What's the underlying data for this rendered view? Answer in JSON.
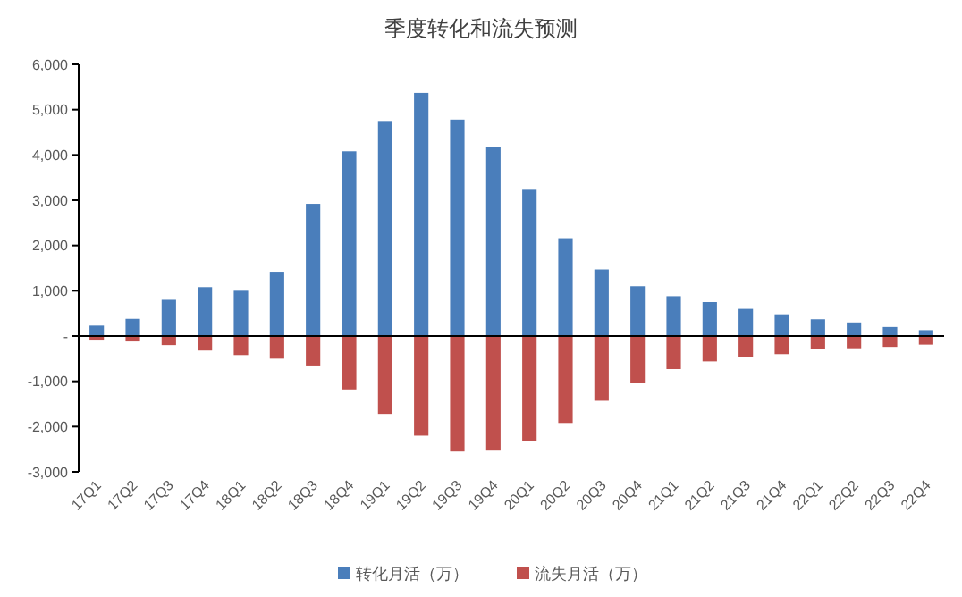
{
  "chart_data": {
    "type": "bar",
    "title": "季度转化和流失预测",
    "categories": [
      "17Q1",
      "17Q2",
      "17Q3",
      "17Q4",
      "18Q1",
      "18Q2",
      "18Q3",
      "18Q4",
      "19Q1",
      "19Q2",
      "19Q3",
      "19Q4",
      "20Q1",
      "20Q2",
      "20Q3",
      "20Q4",
      "21Q1",
      "21Q2",
      "21Q3",
      "21Q4",
      "22Q1",
      "22Q2",
      "22Q3",
      "22Q4"
    ],
    "series": [
      {
        "name": "转化月活（万）",
        "color": "#4a7ebb",
        "values": [
          230,
          380,
          800,
          1080,
          1000,
          1420,
          2920,
          4080,
          4750,
          5370,
          4780,
          4170,
          3230,
          2160,
          1470,
          1100,
          880,
          750,
          600,
          480,
          370,
          300,
          200,
          130
        ]
      },
      {
        "name": "流失月活（万）",
        "color": "#c0504d",
        "values": [
          -80,
          -120,
          -200,
          -320,
          -420,
          -500,
          -650,
          -1180,
          -1720,
          -2200,
          -2550,
          -2530,
          -2320,
          -1920,
          -1430,
          -1030,
          -730,
          -560,
          -470,
          -400,
          -290,
          -270,
          -240,
          -190
        ]
      }
    ],
    "ylim": [
      -3000,
      6000
    ],
    "yticks": [
      {
        "value": -3000,
        "label": "-3,000"
      },
      {
        "value": -2000,
        "label": "-2,000"
      },
      {
        "value": -1000,
        "label": "-1,000"
      },
      {
        "value": 0,
        "label": "-"
      },
      {
        "value": 1000,
        "label": "1,000"
      },
      {
        "value": 2000,
        "label": "2,000"
      },
      {
        "value": 3000,
        "label": "3,000"
      },
      {
        "value": 4000,
        "label": "4,000"
      },
      {
        "value": 5000,
        "label": "5,000"
      },
      {
        "value": 6000,
        "label": "6,000"
      }
    ],
    "stacked": true,
    "legend": "bottom"
  }
}
